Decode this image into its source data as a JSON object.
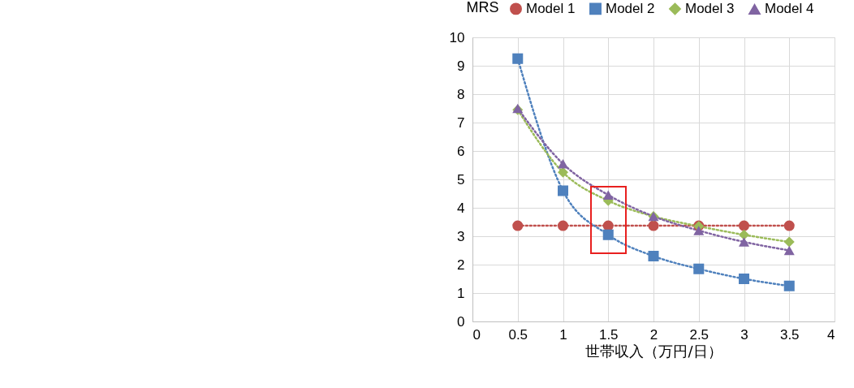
{
  "chart_data": {
    "type": "line",
    "ylabel": "MRS",
    "xlabel": "世帯収入（万円/日）",
    "x": [
      0.5,
      1,
      1.5,
      2,
      2.5,
      3,
      3.5
    ],
    "series": [
      {
        "name": "Model 1",
        "color": "#c0504d",
        "marker": "circle",
        "values": [
          3.37,
          3.37,
          3.37,
          3.37,
          3.37,
          3.37,
          3.37
        ]
      },
      {
        "name": "Model 2",
        "color": "#4f81bd",
        "marker": "square",
        "values": [
          9.25,
          4.6,
          3.05,
          2.3,
          1.85,
          1.5,
          1.25
        ]
      },
      {
        "name": "Model 3",
        "color": "#9bbb59",
        "marker": "diamond",
        "values": [
          7.45,
          5.25,
          4.25,
          3.7,
          3.35,
          3.05,
          2.8
        ]
      },
      {
        "name": "Model 4",
        "color": "#8064a2",
        "marker": "triangle",
        "values": [
          7.5,
          5.55,
          4.45,
          3.7,
          3.2,
          2.8,
          2.5
        ]
      }
    ],
    "xlim": [
      0,
      4
    ],
    "xticks": [
      0,
      0.5,
      1,
      1.5,
      2,
      2.5,
      3,
      3.5,
      4
    ],
    "ylim": [
      0,
      10
    ],
    "yticks": [
      0,
      1,
      2,
      3,
      4,
      5,
      6,
      7,
      8,
      9,
      10
    ],
    "grid": true,
    "legend": "top",
    "line_style": "dotted"
  }
}
